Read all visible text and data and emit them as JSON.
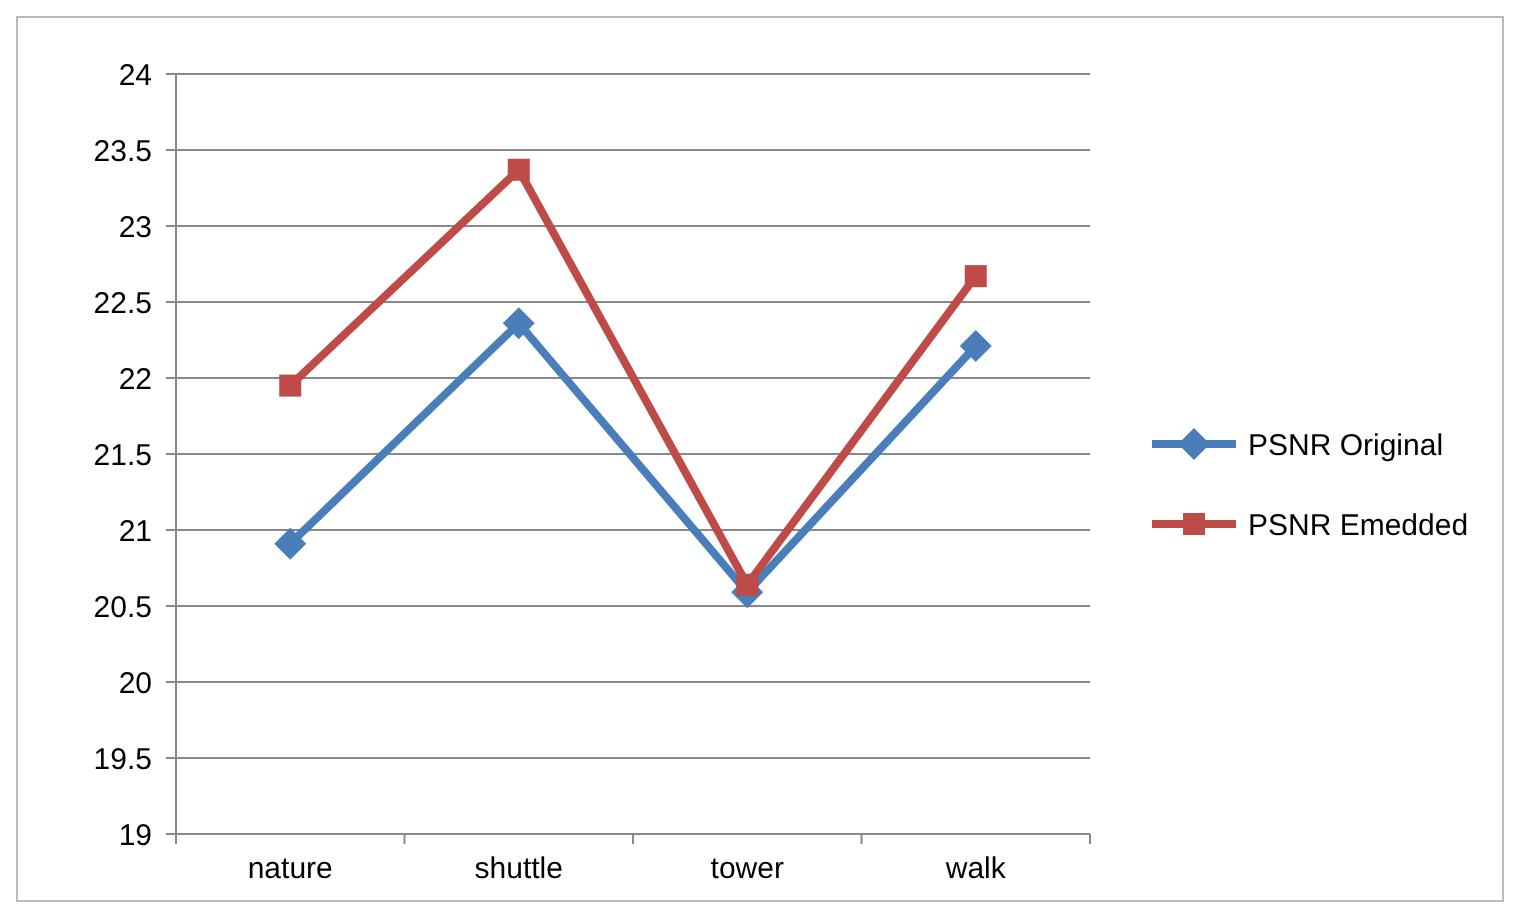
{
  "chart_data": {
    "type": "line",
    "categories": [
      "nature",
      "shuttle",
      "tower",
      "walk"
    ],
    "series": [
      {
        "name": "PSNR Original",
        "color": "#4a7ebb",
        "values": [
          20.91,
          22.36,
          20.59,
          22.21
        ],
        "marker": "diamond"
      },
      {
        "name": "PSNR Emedded",
        "color": "#be4b48",
        "values": [
          21.95,
          23.37,
          20.64,
          22.67
        ],
        "marker": "square"
      }
    ],
    "ylim": [
      19,
      24
    ],
    "yticks": [
      19,
      19.5,
      20,
      20.5,
      21,
      21.5,
      22,
      22.5,
      23,
      23.5,
      24
    ],
    "grid": "y",
    "legend": "right"
  }
}
